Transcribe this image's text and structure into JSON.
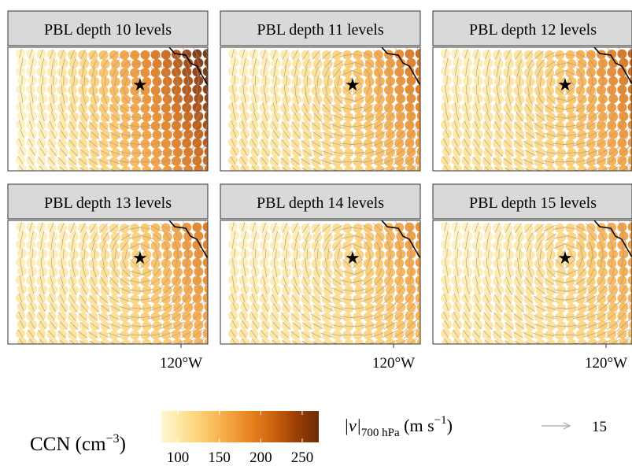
{
  "chart_data": {
    "type": "scatter",
    "description_free": true,
    "panels": [
      {
        "title": "PBL depth 10 levels",
        "intensity": 1.0
      },
      {
        "title": "PBL depth 11 levels",
        "intensity": 0.78
      },
      {
        "title": "PBL depth 12 levels",
        "intensity": 0.82
      },
      {
        "title": "PBL depth 13 levels",
        "intensity": 0.72
      },
      {
        "title": "PBL depth 14 levels",
        "intensity": 0.6
      },
      {
        "title": "PBL depth 15 levels",
        "intensity": 0.58
      }
    ],
    "x_tick_label": "120°W",
    "colorbar": {
      "label_main": "CCN (cm",
      "label_exp": "−3",
      "label_close": ")",
      "min": 80,
      "max": 270,
      "ticks": [
        {
          "value": 100,
          "label": "100"
        },
        {
          "value": 150,
          "label": "150"
        },
        {
          "value": 200,
          "label": "200"
        },
        {
          "value": 250,
          "label": "250"
        }
      ],
      "colors": [
        "#fff8d2",
        "#fde39a",
        "#fbc869",
        "#f5a341",
        "#e6821f",
        "#cb620e",
        "#9b3f06",
        "#6e2a05"
      ]
    },
    "wind_key": {
      "label_v": "|v|",
      "label_sub": "700 hPa",
      "label_units": " (m s",
      "label_exp": "−1",
      "label_close": ")",
      "value": "15"
    },
    "marker": "★",
    "coast_color": "#000000",
    "arrow_color": "#9a9a9a"
  }
}
